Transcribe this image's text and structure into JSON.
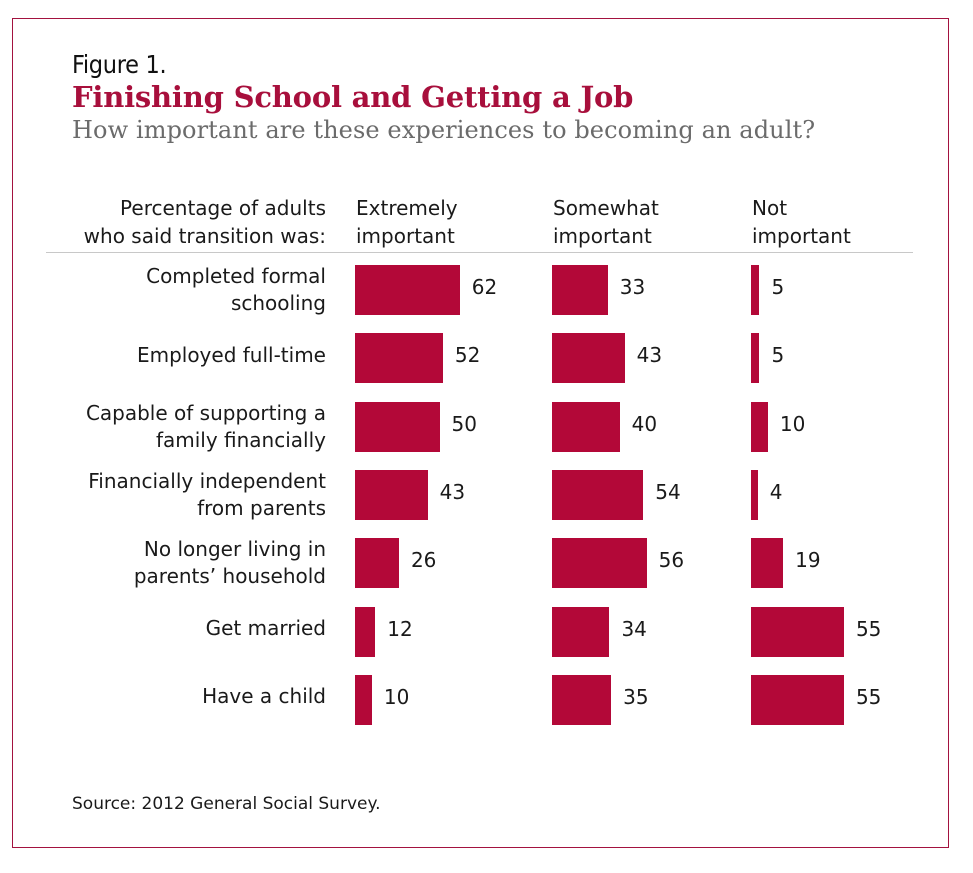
{
  "figure": {
    "number_label": "Figure 1.",
    "title": "Finishing School and Getting a Job",
    "subtitle": "How important are these experiences to becoming an adult?",
    "source": "Source: 2012 General Social Survey."
  },
  "colors": {
    "bar": "#b30838",
    "title": "#a80f3c",
    "border": "#a3123f"
  },
  "chart_data": {
    "type": "bar",
    "orientation": "horizontal",
    "title": "Finishing School and Getting a Job",
    "subtitle": "How important are these experiences to becoming an adult?",
    "row_header": [
      "Percentage of adults",
      "who said transition was:"
    ],
    "categories": [
      [
        "Completed formal",
        "schooling"
      ],
      [
        "Employed full-time"
      ],
      [
        "Capable of supporting a",
        "family financially"
      ],
      [
        "Financially independent",
        "from parents"
      ],
      [
        "No longer living in",
        "parents’ household"
      ],
      [
        "Get married"
      ],
      [
        "Have a child"
      ]
    ],
    "series": [
      {
        "name": "Extremely important",
        "header": [
          "Extremely",
          "important"
        ],
        "values": [
          62,
          52,
          50,
          43,
          26,
          12,
          10
        ]
      },
      {
        "name": "Somewhat important",
        "header": [
          "Somewhat",
          "important"
        ],
        "values": [
          33,
          43,
          40,
          54,
          56,
          34,
          35
        ]
      },
      {
        "name": "Not important",
        "header": [
          "Not",
          "important"
        ],
        "values": [
          5,
          5,
          10,
          4,
          19,
          55,
          55
        ]
      }
    ],
    "unit": "percent",
    "xlim": [
      0,
      100
    ],
    "grid": false,
    "legend": "none (column headers)",
    "source": "Source: 2012 General Social Survey."
  }
}
